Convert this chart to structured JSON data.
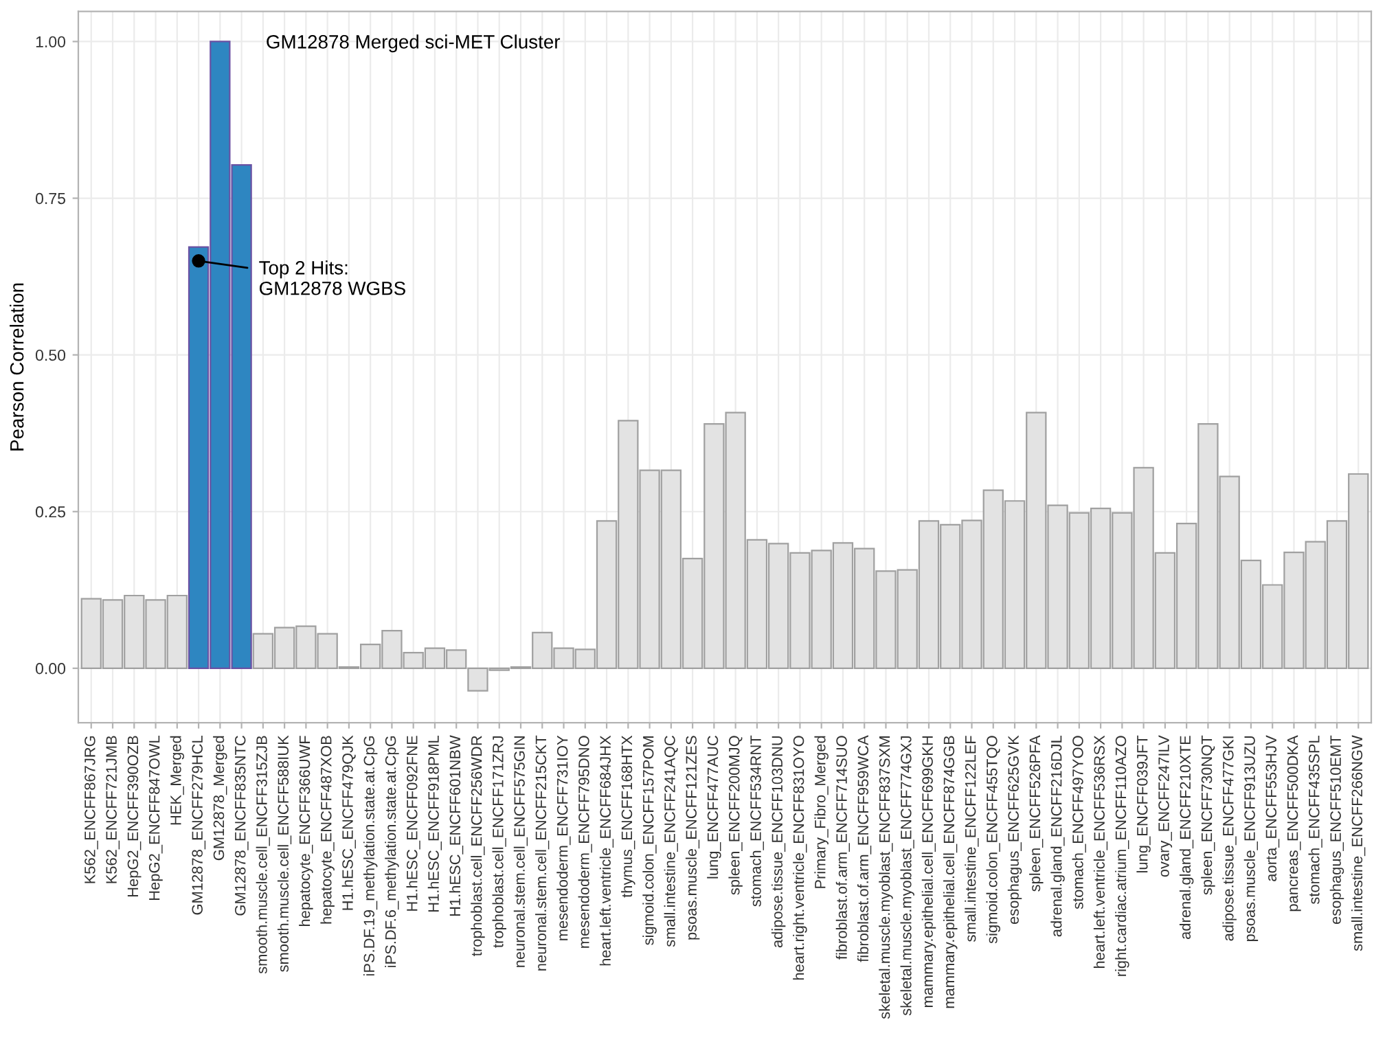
{
  "chart_data": {
    "type": "bar",
    "ylabel": "Pearson Correlation",
    "categories": [
      "K562_ENCFF867JRG",
      "K562_ENCFF721JMB",
      "HepG2_ENCFF390OZB",
      "HepG2_ENCFF847OWL",
      "HEK_Merged",
      "GM12878_ENCFF279HCL",
      "GM12878_Merged",
      "GM12878_ENCFF835NTC",
      "smooth.muscle.cell_ENCFF315ZJB",
      "smooth.muscle.cell_ENCFF588IUK",
      "hepatocyte_ENCFF366UWF",
      "hepatocyte_ENCFF487XOB",
      "H1.hESC_ENCFF479QJK",
      "iPS.DF.19_methylation.state.at.CpG",
      "iPS.DF.6_methylation.state.at.CpG",
      "H1.hESC_ENCFF092FNE",
      "H1.hESC_ENCFF918PML",
      "H1.hESC_ENCFF601NBW",
      "trophoblast.cell_ENCFF256WDR",
      "trophoblast.cell_ENCFF171ZRJ",
      "neuronal.stem.cell_ENCFF575GIN",
      "neuronal.stem.cell_ENCFF215CKT",
      "mesendoderm_ENCFF731IOY",
      "mesendoderm_ENCFF795DNO",
      "heart.left.ventricle_ENCFF684JHX",
      "thymus_ENCFF168HTX",
      "sigmoid.colon_ENCFF157POM",
      "small.intestine_ENCFF241AQC",
      "psoas.muscle_ENCFF121ZES",
      "lung_ENCFF477AUC",
      "spleen_ENCFF200MJQ",
      "stomach_ENCFF534RNT",
      "adipose.tissue_ENCFF103DNU",
      "heart.right.ventricle_ENCFF831OYO",
      "Primary_Fibro_Merged",
      "fibroblast.of.arm_ENCFF714SUO",
      "fibroblast.of.arm_ENCFF959WCA",
      "skeletal.muscle.myoblast_ENCFF837SXM",
      "skeletal.muscle.myoblast_ENCFF774GXJ",
      "mammary.epithelial.cell_ENCFF699GKH",
      "mammary.epithelial.cell_ENCFF874GGB",
      "small.intestine_ENCFF122LEF",
      "sigmoid.colon_ENCFF455TQO",
      "esophagus_ENCFF625GVK",
      "spleen_ENCFF526PFA",
      "adrenal.gland_ENCFF216DJL",
      "stomach_ENCFF497YOO",
      "heart.left.ventricle_ENCFF536RSX",
      "right.cardiac.atrium_ENCFF110AZO",
      "lung_ENCFF039JFT",
      "ovary_ENCFF247ILV",
      "adrenal.gland_ENCFF210XTE",
      "spleen_ENCFF730NQT",
      "adipose.tissue_ENCFF477GKI",
      "psoas.muscle_ENCFF913UZU",
      "aorta_ENCFF553HJV",
      "pancreas_ENCFF500DKA",
      "stomach_ENCFF435SPL",
      "esophagus_ENCFF510EMT",
      "small.intestine_ENCFF266NGW"
    ],
    "values": [
      0.111,
      0.109,
      0.116,
      0.109,
      0.116,
      0.672,
      1.0,
      0.803,
      0.055,
      0.065,
      0.067,
      0.055,
      0.002,
      0.038,
      0.06,
      0.025,
      0.032,
      0.029,
      -0.036,
      -0.003,
      0.002,
      0.057,
      0.032,
      0.03,
      0.235,
      0.395,
      0.316,
      0.316,
      0.175,
      0.39,
      0.408,
      0.205,
      0.199,
      0.184,
      0.188,
      0.2,
      0.191,
      0.155,
      0.157,
      0.235,
      0.229,
      0.236,
      0.284,
      0.267,
      0.408,
      0.26,
      0.248,
      0.255,
      0.248,
      0.32,
      0.184,
      0.231,
      0.39,
      0.306,
      0.172,
      0.133,
      0.185,
      0.202,
      0.235,
      0.31
    ],
    "colors": [
      "#e3e3e3",
      "#e3e3e3",
      "#e3e3e3",
      "#e3e3e3",
      "#e3e3e3",
      "#2e86c1",
      "#2e86c1",
      "#2e86c1",
      "#e3e3e3",
      "#e3e3e3",
      "#e3e3e3",
      "#e3e3e3",
      "#e3e3e3",
      "#e3e3e3",
      "#e3e3e3",
      "#e3e3e3",
      "#e3e3e3",
      "#e3e3e3",
      "#e3e3e3",
      "#e3e3e3",
      "#e3e3e3",
      "#e3e3e3",
      "#e3e3e3",
      "#e3e3e3",
      "#e3e3e3",
      "#e3e3e3",
      "#e3e3e3",
      "#e3e3e3",
      "#e3e3e3",
      "#e3e3e3",
      "#e3e3e3",
      "#e3e3e3",
      "#e3e3e3",
      "#e3e3e3",
      "#e3e3e3",
      "#e3e3e3",
      "#e3e3e3",
      "#e3e3e3",
      "#e3e3e3",
      "#e3e3e3",
      "#e3e3e3",
      "#e3e3e3",
      "#e3e3e3",
      "#e3e3e3",
      "#e3e3e3",
      "#e3e3e3",
      "#e3e3e3",
      "#e3e3e3",
      "#e3e3e3",
      "#e3e3e3",
      "#e3e3e3",
      "#e3e3e3",
      "#e3e3e3",
      "#e3e3e3",
      "#e3e3e3",
      "#e3e3e3",
      "#e3e3e3",
      "#e3e3e3",
      "#e3e3e3",
      "#e3e3e3"
    ],
    "ylim": [
      -0.087,
      1.048
    ],
    "yticks": [
      {
        "value": 0,
        "label": "0.00"
      },
      {
        "value": 0.25,
        "label": "0.25"
      },
      {
        "value": 0.5,
        "label": "0.50"
      },
      {
        "value": 0.75,
        "label": "0.75"
      },
      {
        "value": 1,
        "label": "1.00"
      }
    ],
    "grid": true,
    "annotations": [
      "GM12878 Merged sci-MET Cluster",
      {
        "text": "Top 2 Hits:\nGM12878 WGBS",
        "x": "GM12878_ENCFF279HCL",
        "y": 0.65
      }
    ]
  }
}
